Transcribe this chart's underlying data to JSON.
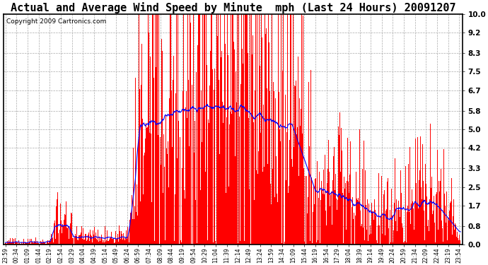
{
  "title": "Actual and Average Wind Speed by Minute  mph (Last 24 Hours) 20091207",
  "copyright": "Copyright 2009 Cartronics.com",
  "yticks": [
    0.0,
    0.8,
    1.7,
    2.5,
    3.3,
    4.2,
    5.0,
    5.8,
    6.7,
    7.5,
    8.3,
    9.2,
    10.0
  ],
  "ymax": 10.0,
  "ymin": 0.0,
  "bar_color": "#FF0000",
  "line_color": "#0000FF",
  "background_color": "#FFFFFF",
  "grid_color": "#AAAAAA",
  "title_fontsize": 11,
  "copyright_fontsize": 6.5,
  "xtick_fontsize": 5.5,
  "ytick_fontsize": 7.5,
  "tick_interval_minutes": 35,
  "n_points": 1440
}
